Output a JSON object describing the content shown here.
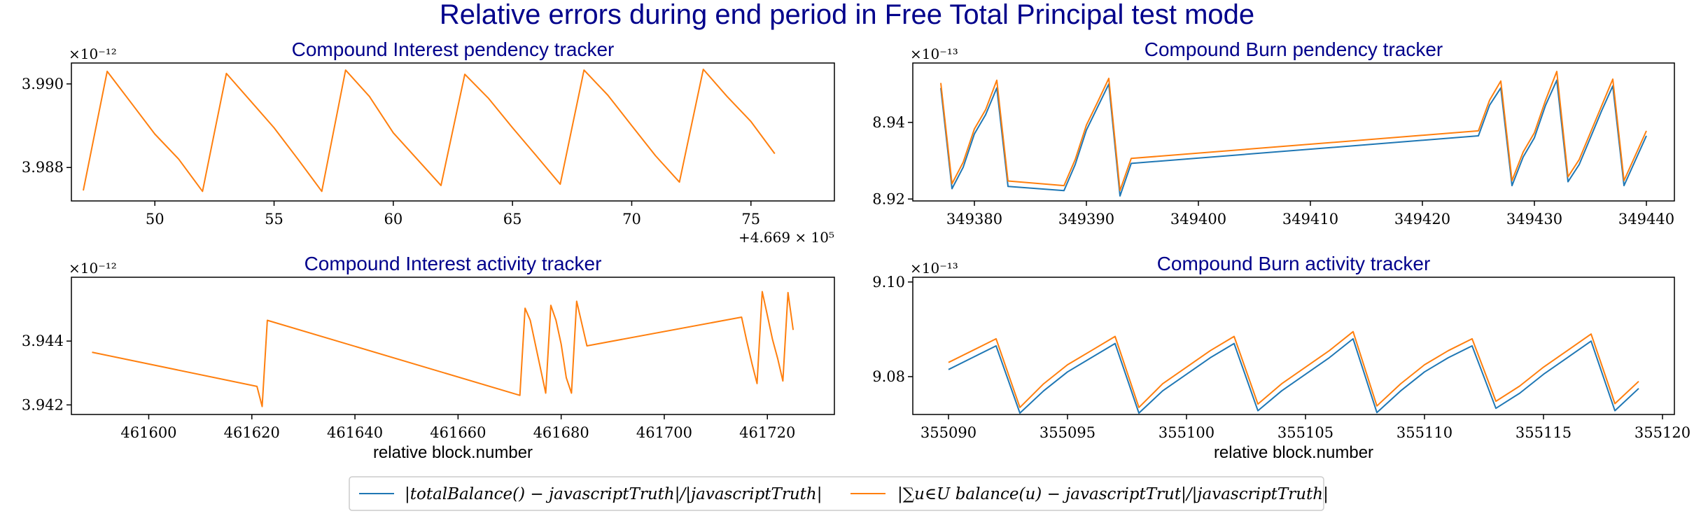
{
  "title": "Relative errors during end period in Free Total Principal test mode",
  "colors": {
    "series1": "#1f77b4",
    "series2": "#ff7f0e",
    "title": "#00008b"
  },
  "legend": {
    "placement": "bottom-center",
    "entries": [
      "|totalBalance() − javascriptTruth|/|javascriptTruth|",
      "|∑u∈U balance(u) − javascriptTrut|/|javascriptTruth|"
    ]
  },
  "chart_data": [
    {
      "type": "line",
      "title": "Compound Interest pendency tracker",
      "xlabel": "",
      "y_multiplier": "×10⁻¹²",
      "x_offset": "+4.669 × 10⁵",
      "xlim": [
        46.5,
        78.5
      ],
      "ylim": [
        3.9872,
        3.9905
      ],
      "xticks": [
        50,
        55,
        60,
        65,
        70,
        75
      ],
      "xtick_labels": [
        "50",
        "55",
        "60",
        "65",
        "70",
        "75"
      ],
      "yticks": [
        3.988,
        3.99
      ],
      "ytick_labels": [
        "3.988",
        "3.990"
      ],
      "series": [
        {
          "color": "series2",
          "x": [
            47,
            48,
            49,
            50,
            51,
            52,
            53,
            54,
            55,
            56,
            57,
            58,
            59,
            60,
            61,
            62,
            63,
            64,
            65,
            66,
            67,
            68,
            69,
            70,
            71,
            72,
            73,
            74,
            75,
            76
          ],
          "y": [
            3.98745,
            3.9903,
            3.98955,
            3.9888,
            3.9882,
            3.98743,
            3.99025,
            3.9896,
            3.98895,
            3.9882,
            3.98743,
            3.99033,
            3.9897,
            3.98883,
            3.9882,
            3.98757,
            3.99023,
            3.98965,
            3.98895,
            3.98828,
            3.9876,
            3.99033,
            3.98973,
            3.989,
            3.98828,
            3.98765,
            3.99035,
            3.9897,
            3.9891,
            3.98833
          ]
        }
      ]
    },
    {
      "type": "line",
      "title": "Compound Burn pendency tracker",
      "xlabel": "",
      "y_multiplier": "×10⁻¹³",
      "xlim": [
        349374.5,
        349442.5
      ],
      "ylim": [
        8.9195,
        8.9555
      ],
      "xticks": [
        349380,
        349390,
        349400,
        349410,
        349420,
        349430,
        349440
      ],
      "xtick_labels": [
        "349380",
        "349390",
        "349400",
        "349410",
        "349420",
        "349430",
        "349440"
      ],
      "yticks": [
        8.92,
        8.94
      ],
      "ytick_labels": [
        "8.92",
        "8.94"
      ],
      "series": [
        {
          "color": "series1",
          "x": [
            349377,
            349378,
            349379,
            349380,
            349381,
            349382,
            349383,
            349388,
            349389,
            349390,
            349391,
            349392,
            349393,
            349394,
            349425,
            349426,
            349427,
            349428,
            349429,
            349430,
            349431,
            349432,
            349433,
            349434,
            349435,
            349436,
            349437,
            349438,
            349439,
            349440
          ],
          "y": [
            8.949,
            8.9227,
            8.9283,
            8.937,
            8.942,
            8.949,
            8.9233,
            8.9222,
            8.929,
            8.938,
            8.944,
            8.95,
            8.9208,
            8.9293,
            8.9365,
            8.9445,
            8.949,
            8.9235,
            8.931,
            8.936,
            8.9445,
            8.951,
            8.9245,
            8.929,
            8.936,
            8.943,
            8.9495,
            8.9235,
            8.93,
            8.9365
          ]
        },
        {
          "color": "series2",
          "x": [
            349377,
            349378,
            349379,
            349380,
            349381,
            349382,
            349383,
            349388,
            349389,
            349390,
            349391,
            349392,
            349393,
            349394,
            349425,
            349426,
            349427,
            349428,
            349429,
            349430,
            349431,
            349432,
            349433,
            349434,
            349435,
            349436,
            349437,
            349438,
            349439,
            349440
          ],
          "y": [
            8.9503,
            8.924,
            8.9296,
            8.9383,
            8.9433,
            8.951,
            8.9247,
            8.9235,
            8.9303,
            8.9393,
            8.9453,
            8.9515,
            8.9222,
            8.9306,
            8.9378,
            8.9458,
            8.9508,
            8.9248,
            8.9323,
            8.9373,
            8.9458,
            8.9533,
            8.9258,
            8.9303,
            8.9373,
            8.9443,
            8.9513,
            8.9248,
            8.9313,
            8.9378
          ]
        }
      ]
    },
    {
      "type": "line",
      "title": "Compound Interest activity tracker",
      "xlabel": "relative block.number",
      "y_multiplier": "×10⁻¹²",
      "xlim": [
        461585,
        461733
      ],
      "ylim": [
        3.9417,
        3.946
      ],
      "xticks": [
        461600,
        461620,
        461640,
        461660,
        461680,
        461700,
        461720
      ],
      "xtick_labels": [
        "461600",
        "461620",
        "461640",
        "461660",
        "461680",
        "461700",
        "461720"
      ],
      "yticks": [
        3.942,
        3.944
      ],
      "ytick_labels": [
        "3.942",
        "3.944"
      ],
      "series": [
        {
          "color": "series2",
          "x": [
            461589,
            461621,
            461622,
            461623,
            461672,
            461673,
            461674,
            461677,
            461678,
            461679,
            461680,
            461681,
            461682,
            461683,
            461685,
            461715,
            461716,
            461717,
            461718,
            461719,
            461720,
            461721,
            461722,
            461723,
            461724,
            461725
          ],
          "y": [
            3.94365,
            3.94258,
            3.94195,
            3.94465,
            3.9423,
            3.94503,
            3.94465,
            3.94237,
            3.94512,
            3.94465,
            3.9439,
            3.94285,
            3.94237,
            3.94525,
            3.94385,
            3.94475,
            3.944,
            3.9433,
            3.94267,
            3.94555,
            3.9448,
            3.94405,
            3.94345,
            3.94275,
            3.94552,
            3.94435
          ]
        }
      ]
    },
    {
      "type": "line",
      "title": "Compound Burn activity tracker",
      "xlabel": "relative block.number",
      "y_multiplier": "×10⁻¹³",
      "xlim": [
        355088.5,
        355120.5
      ],
      "ylim": [
        9.072,
        9.101
      ],
      "xticks": [
        355090,
        355095,
        355100,
        355105,
        355110,
        355115,
        355120
      ],
      "xtick_labels": [
        "355090",
        "355095",
        "355100",
        "355105",
        "355110",
        "355115",
        "355120"
      ],
      "yticks": [
        9.08,
        9.1
      ],
      "ytick_labels": [
        "9.08",
        "9.10"
      ],
      "series": [
        {
          "color": "series1",
          "x": [
            355090,
            355091,
            355092,
            355093,
            355094,
            355095,
            355096,
            355097,
            355098,
            355099,
            355100,
            355101,
            355102,
            355103,
            355104,
            355105,
            355106,
            355107,
            355108,
            355109,
            355110,
            355111,
            355112,
            355113,
            355114,
            355115,
            355116,
            355117,
            355118,
            355119
          ],
          "y": [
            9.0815,
            9.084,
            9.0865,
            9.0723,
            9.077,
            9.081,
            9.084,
            9.087,
            9.0723,
            9.077,
            9.0805,
            9.084,
            9.087,
            9.0728,
            9.077,
            9.0805,
            9.084,
            9.088,
            9.0724,
            9.077,
            9.081,
            9.084,
            9.0865,
            9.0733,
            9.0765,
            9.0805,
            9.084,
            9.0875,
            9.0728,
            9.0775
          ]
        },
        {
          "color": "series2",
          "x": [
            355090,
            355091,
            355092,
            355093,
            355094,
            355095,
            355096,
            355097,
            355098,
            355099,
            355100,
            355101,
            355102,
            355103,
            355104,
            355105,
            355106,
            355107,
            355108,
            355109,
            355110,
            355111,
            355112,
            355113,
            355114,
            355115,
            355116,
            355117,
            355118,
            355119
          ],
          "y": [
            9.083,
            9.0855,
            9.088,
            9.0735,
            9.0785,
            9.0825,
            9.0855,
            9.0885,
            9.0735,
            9.0785,
            9.082,
            9.0855,
            9.0885,
            9.0742,
            9.0785,
            9.082,
            9.0855,
            9.0895,
            9.0738,
            9.0785,
            9.0825,
            9.0855,
            9.088,
            9.0748,
            9.078,
            9.082,
            9.0855,
            9.089,
            9.0743,
            9.079
          ]
        }
      ]
    }
  ]
}
